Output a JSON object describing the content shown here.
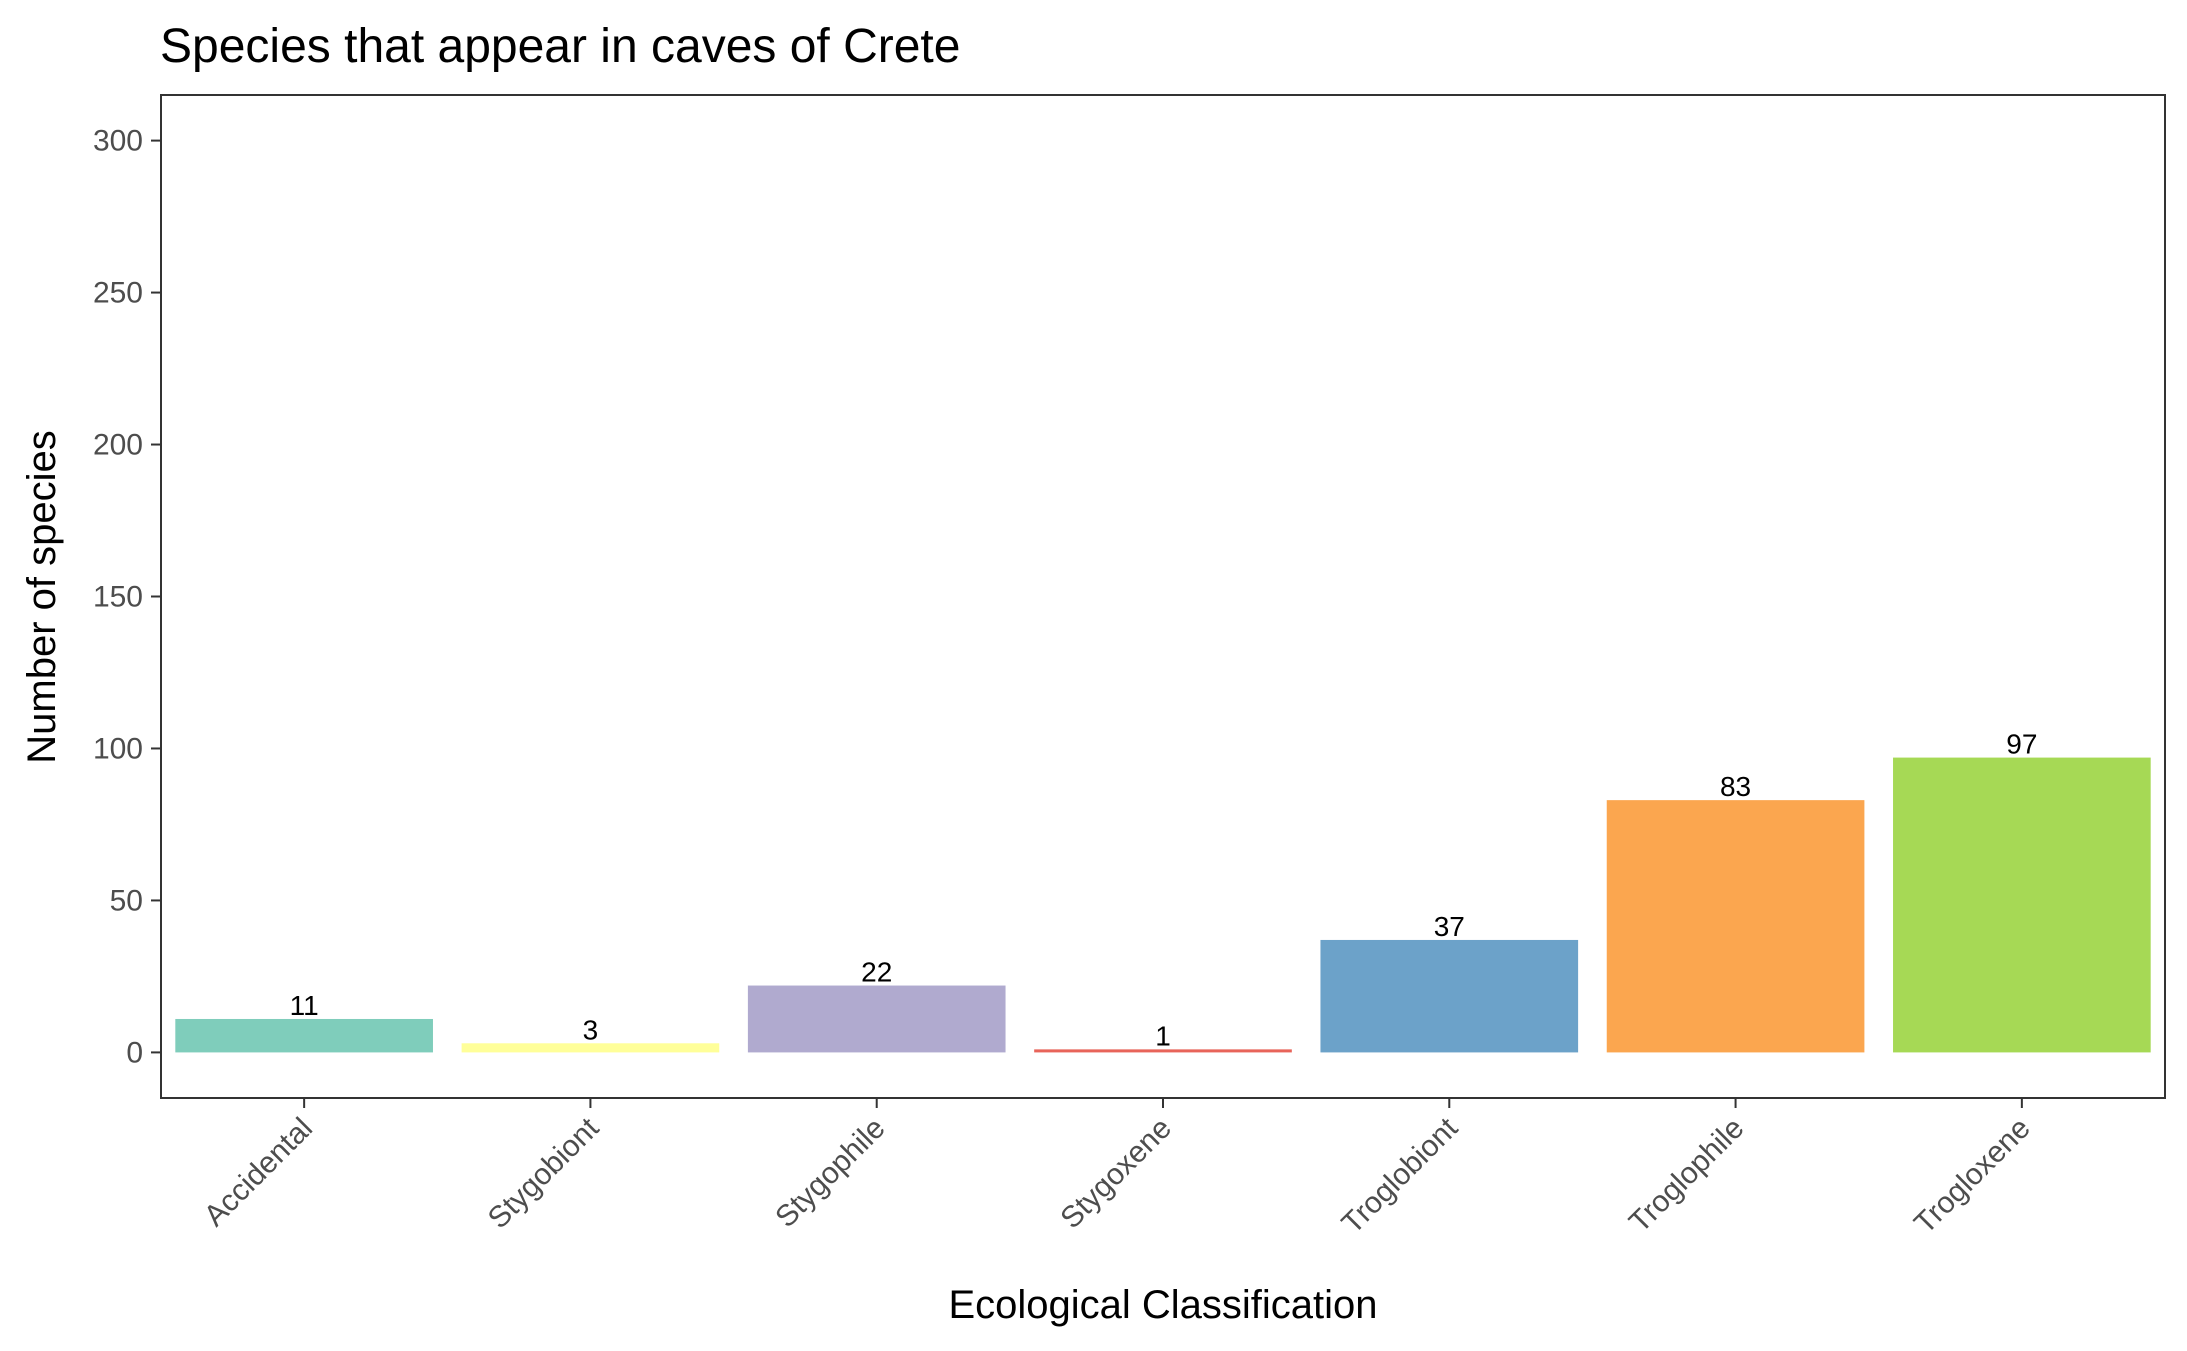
{
  "chart_data": {
    "type": "bar",
    "title": "Species that appear in caves of Crete",
    "xlabel": "Ecological Classification",
    "ylabel": "Number of species",
    "categories": [
      "Accidental",
      "Stygobiont",
      "Stygophile",
      "Stygoxene",
      "Troglobiont",
      "Troglophile",
      "Trogloxene"
    ],
    "values": [
      11,
      3,
      22,
      1,
      37,
      83,
      97
    ],
    "data_labels": [
      "11",
      "3",
      "22",
      "1",
      "37",
      "83",
      "97"
    ],
    "colors": [
      "#7fcdbb",
      "#ffff99",
      "#b0aacf",
      "#e8645a",
      "#6ca2c9",
      "#fba64f",
      "#a6d955"
    ],
    "ylim": [
      -15,
      315
    ],
    "yticks": [
      0,
      50,
      100,
      150,
      200,
      250,
      300
    ],
    "ytick_labels": [
      "0",
      "50",
      "100",
      "150",
      "200",
      "250",
      "300"
    ],
    "grid": false,
    "legend": "none"
  }
}
